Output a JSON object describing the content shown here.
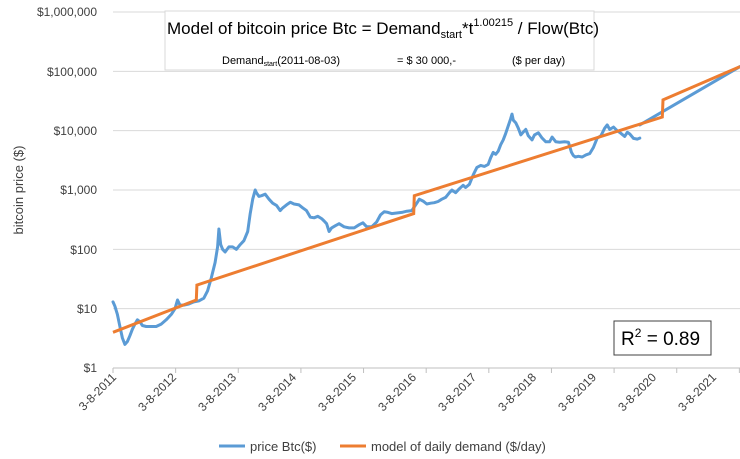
{
  "chart_data": {
    "type": "line",
    "title": {
      "prefix": "Model of bitcoin price Btc = Demand",
      "sub": "start",
      "mid": "*t",
      "sup": "1.00215",
      "suffix": " / Flow(Btc)"
    },
    "subtitle": {
      "label": "Demand",
      "label_sub": "start",
      "date": "(2011-08-03)",
      "value": "= $ 30 000,-",
      "unit": "($ per day)"
    },
    "ylabel": "bitcoin price ($)",
    "yscale": "log",
    "ylim": [
      1,
      1000000
    ],
    "ytick_values": [
      1,
      10,
      100,
      1000,
      10000,
      100000,
      1000000
    ],
    "ytick_labels": [
      "$1",
      "$10",
      "$100",
      "$1,000",
      "$10,000",
      "$100,000",
      "$1,000,000"
    ],
    "xlim": [
      2011.59,
      2021.6
    ],
    "xtick_values": [
      2011.59,
      2012.59,
      2013.59,
      2014.59,
      2015.59,
      2016.59,
      2017.59,
      2018.59,
      2019.59,
      2020.59,
      2021.59
    ],
    "xtick_labels": [
      "3-8-2011",
      "3-8-2012",
      "3-8-2013",
      "3-8-2014",
      "3-8-2015",
      "3-8-2016",
      "3-8-2017",
      "3-8-2018",
      "3-8-2019",
      "3-8-2020",
      "3-8-2021"
    ],
    "annotation": {
      "label": "R",
      "sup": "2",
      "value": " = 0.89"
    },
    "legend": {
      "position": "bottom"
    },
    "series": [
      {
        "name": "price Btc($)",
        "color": "#5b9bd5",
        "points": [
          [
            2011.59,
            13
          ],
          [
            2011.62,
            11
          ],
          [
            2011.66,
            8
          ],
          [
            2011.7,
            5
          ],
          [
            2011.74,
            3.2
          ],
          [
            2011.78,
            2.5
          ],
          [
            2011.82,
            2.8
          ],
          [
            2011.86,
            3.5
          ],
          [
            2011.9,
            4.5
          ],
          [
            2011.94,
            5.5
          ],
          [
            2011.98,
            6.5
          ],
          [
            2012.02,
            6
          ],
          [
            2012.06,
            5.2
          ],
          [
            2012.12,
            5
          ],
          [
            2012.2,
            5
          ],
          [
            2012.28,
            5
          ],
          [
            2012.36,
            5.5
          ],
          [
            2012.44,
            6.5
          ],
          [
            2012.52,
            8
          ],
          [
            2012.58,
            10
          ],
          [
            2012.62,
            14
          ],
          [
            2012.66,
            11.5
          ],
          [
            2012.72,
            11.5
          ],
          [
            2012.8,
            12
          ],
          [
            2012.88,
            13
          ],
          [
            2012.96,
            13.5
          ],
          [
            2013.04,
            15
          ],
          [
            2013.1,
            20
          ],
          [
            2013.16,
            33
          ],
          [
            2013.22,
            60
          ],
          [
            2013.26,
            110
          ],
          [
            2013.28,
            220
          ],
          [
            2013.31,
            120
          ],
          [
            2013.34,
            100
          ],
          [
            2013.38,
            90
          ],
          [
            2013.44,
            110
          ],
          [
            2013.5,
            110
          ],
          [
            2013.56,
            100
          ],
          [
            2013.62,
            120
          ],
          [
            2013.68,
            140
          ],
          [
            2013.74,
            200
          ],
          [
            2013.78,
            400
          ],
          [
            2013.82,
            700
          ],
          [
            2013.86,
            1000
          ],
          [
            2013.88,
            900
          ],
          [
            2013.92,
            780
          ],
          [
            2013.96,
            800
          ],
          [
            2014.02,
            850
          ],
          [
            2014.08,
            700
          ],
          [
            2014.14,
            600
          ],
          [
            2014.2,
            550
          ],
          [
            2014.26,
            450
          ],
          [
            2014.3,
            500
          ],
          [
            2014.36,
            560
          ],
          [
            2014.42,
            620
          ],
          [
            2014.48,
            580
          ],
          [
            2014.56,
            560
          ],
          [
            2014.62,
            500
          ],
          [
            2014.68,
            450
          ],
          [
            2014.74,
            350
          ],
          [
            2014.8,
            340
          ],
          [
            2014.86,
            360
          ],
          [
            2014.92,
            330
          ],
          [
            2014.96,
            300
          ],
          [
            2015.0,
            270
          ],
          [
            2015.04,
            200
          ],
          [
            2015.08,
            230
          ],
          [
            2015.14,
            250
          ],
          [
            2015.2,
            270
          ],
          [
            2015.28,
            240
          ],
          [
            2015.36,
            230
          ],
          [
            2015.44,
            230
          ],
          [
            2015.52,
            260
          ],
          [
            2015.58,
            280
          ],
          [
            2015.64,
            240
          ],
          [
            2015.72,
            240
          ],
          [
            2015.8,
            290
          ],
          [
            2015.86,
            380
          ],
          [
            2015.92,
            430
          ],
          [
            2015.98,
            420
          ],
          [
            2016.04,
            400
          ],
          [
            2016.12,
            410
          ],
          [
            2016.2,
            420
          ],
          [
            2016.28,
            440
          ],
          [
            2016.36,
            450
          ],
          [
            2016.44,
            600
          ],
          [
            2016.48,
            700
          ],
          [
            2016.54,
            650
          ],
          [
            2016.6,
            580
          ],
          [
            2016.66,
            600
          ],
          [
            2016.72,
            610
          ],
          [
            2016.78,
            640
          ],
          [
            2016.84,
            700
          ],
          [
            2016.9,
            750
          ],
          [
            2016.96,
            900
          ],
          [
            2017.0,
            1000
          ],
          [
            2017.06,
            900
          ],
          [
            2017.12,
            1050
          ],
          [
            2017.18,
            1200
          ],
          [
            2017.22,
            1100
          ],
          [
            2017.28,
            1250
          ],
          [
            2017.34,
            1800
          ],
          [
            2017.4,
            2400
          ],
          [
            2017.46,
            2600
          ],
          [
            2017.52,
            2500
          ],
          [
            2017.58,
            2700
          ],
          [
            2017.62,
            3500
          ],
          [
            2017.66,
            4300
          ],
          [
            2017.7,
            4000
          ],
          [
            2017.74,
            4500
          ],
          [
            2017.78,
            5800
          ],
          [
            2017.82,
            7000
          ],
          [
            2017.86,
            9000
          ],
          [
            2017.9,
            12000
          ],
          [
            2017.94,
            16000
          ],
          [
            2017.96,
            19000
          ],
          [
            2017.98,
            15000
          ],
          [
            2018.02,
            13500
          ],
          [
            2018.06,
            11000
          ],
          [
            2018.1,
            8500
          ],
          [
            2018.14,
            9500
          ],
          [
            2018.18,
            10500
          ],
          [
            2018.22,
            8200
          ],
          [
            2018.28,
            7000
          ],
          [
            2018.32,
            8500
          ],
          [
            2018.38,
            9200
          ],
          [
            2018.44,
            7500
          ],
          [
            2018.5,
            6500
          ],
          [
            2018.56,
            6500
          ],
          [
            2018.6,
            7800
          ],
          [
            2018.66,
            6500
          ],
          [
            2018.72,
            6400
          ],
          [
            2018.8,
            6500
          ],
          [
            2018.86,
            6400
          ],
          [
            2018.88,
            5500
          ],
          [
            2018.91,
            4300
          ],
          [
            2018.94,
            3800
          ],
          [
            2018.97,
            3600
          ],
          [
            2019.02,
            3700
          ],
          [
            2019.08,
            3600
          ],
          [
            2019.14,
            3900
          ],
          [
            2019.2,
            4100
          ],
          [
            2019.26,
            5200
          ],
          [
            2019.32,
            7500
          ],
          [
            2019.38,
            8200
          ],
          [
            2019.44,
            11000
          ],
          [
            2019.48,
            12500
          ],
          [
            2019.52,
            10500
          ],
          [
            2019.58,
            11500
          ],
          [
            2019.64,
            10000
          ],
          [
            2019.7,
            9000
          ],
          [
            2019.76,
            8000
          ],
          [
            2019.8,
            9400
          ],
          [
            2019.84,
            8800
          ],
          [
            2019.9,
            7400
          ],
          [
            2019.96,
            7200
          ],
          [
            2020.0,
            7500
          ]
        ]
      },
      {
        "name": "model of daily demand ($/day)",
        "color": "#ed7d31",
        "points": [
          [
            2011.59,
            4
          ],
          [
            2012.92,
            14
          ],
          [
            2012.93,
            25
          ],
          [
            2016.39,
            400
          ],
          [
            2016.4,
            800
          ],
          [
            2020.36,
            17000
          ],
          [
            2020.37,
            33000
          ],
          [
            2021.6,
            120000
          ]
        ]
      },
      {
        "name": "model continuation",
        "color": "#5b9bd5",
        "legend": false,
        "points": [
          [
            2020.0,
            12500
          ],
          [
            2021.6,
            120000
          ]
        ]
      }
    ]
  }
}
